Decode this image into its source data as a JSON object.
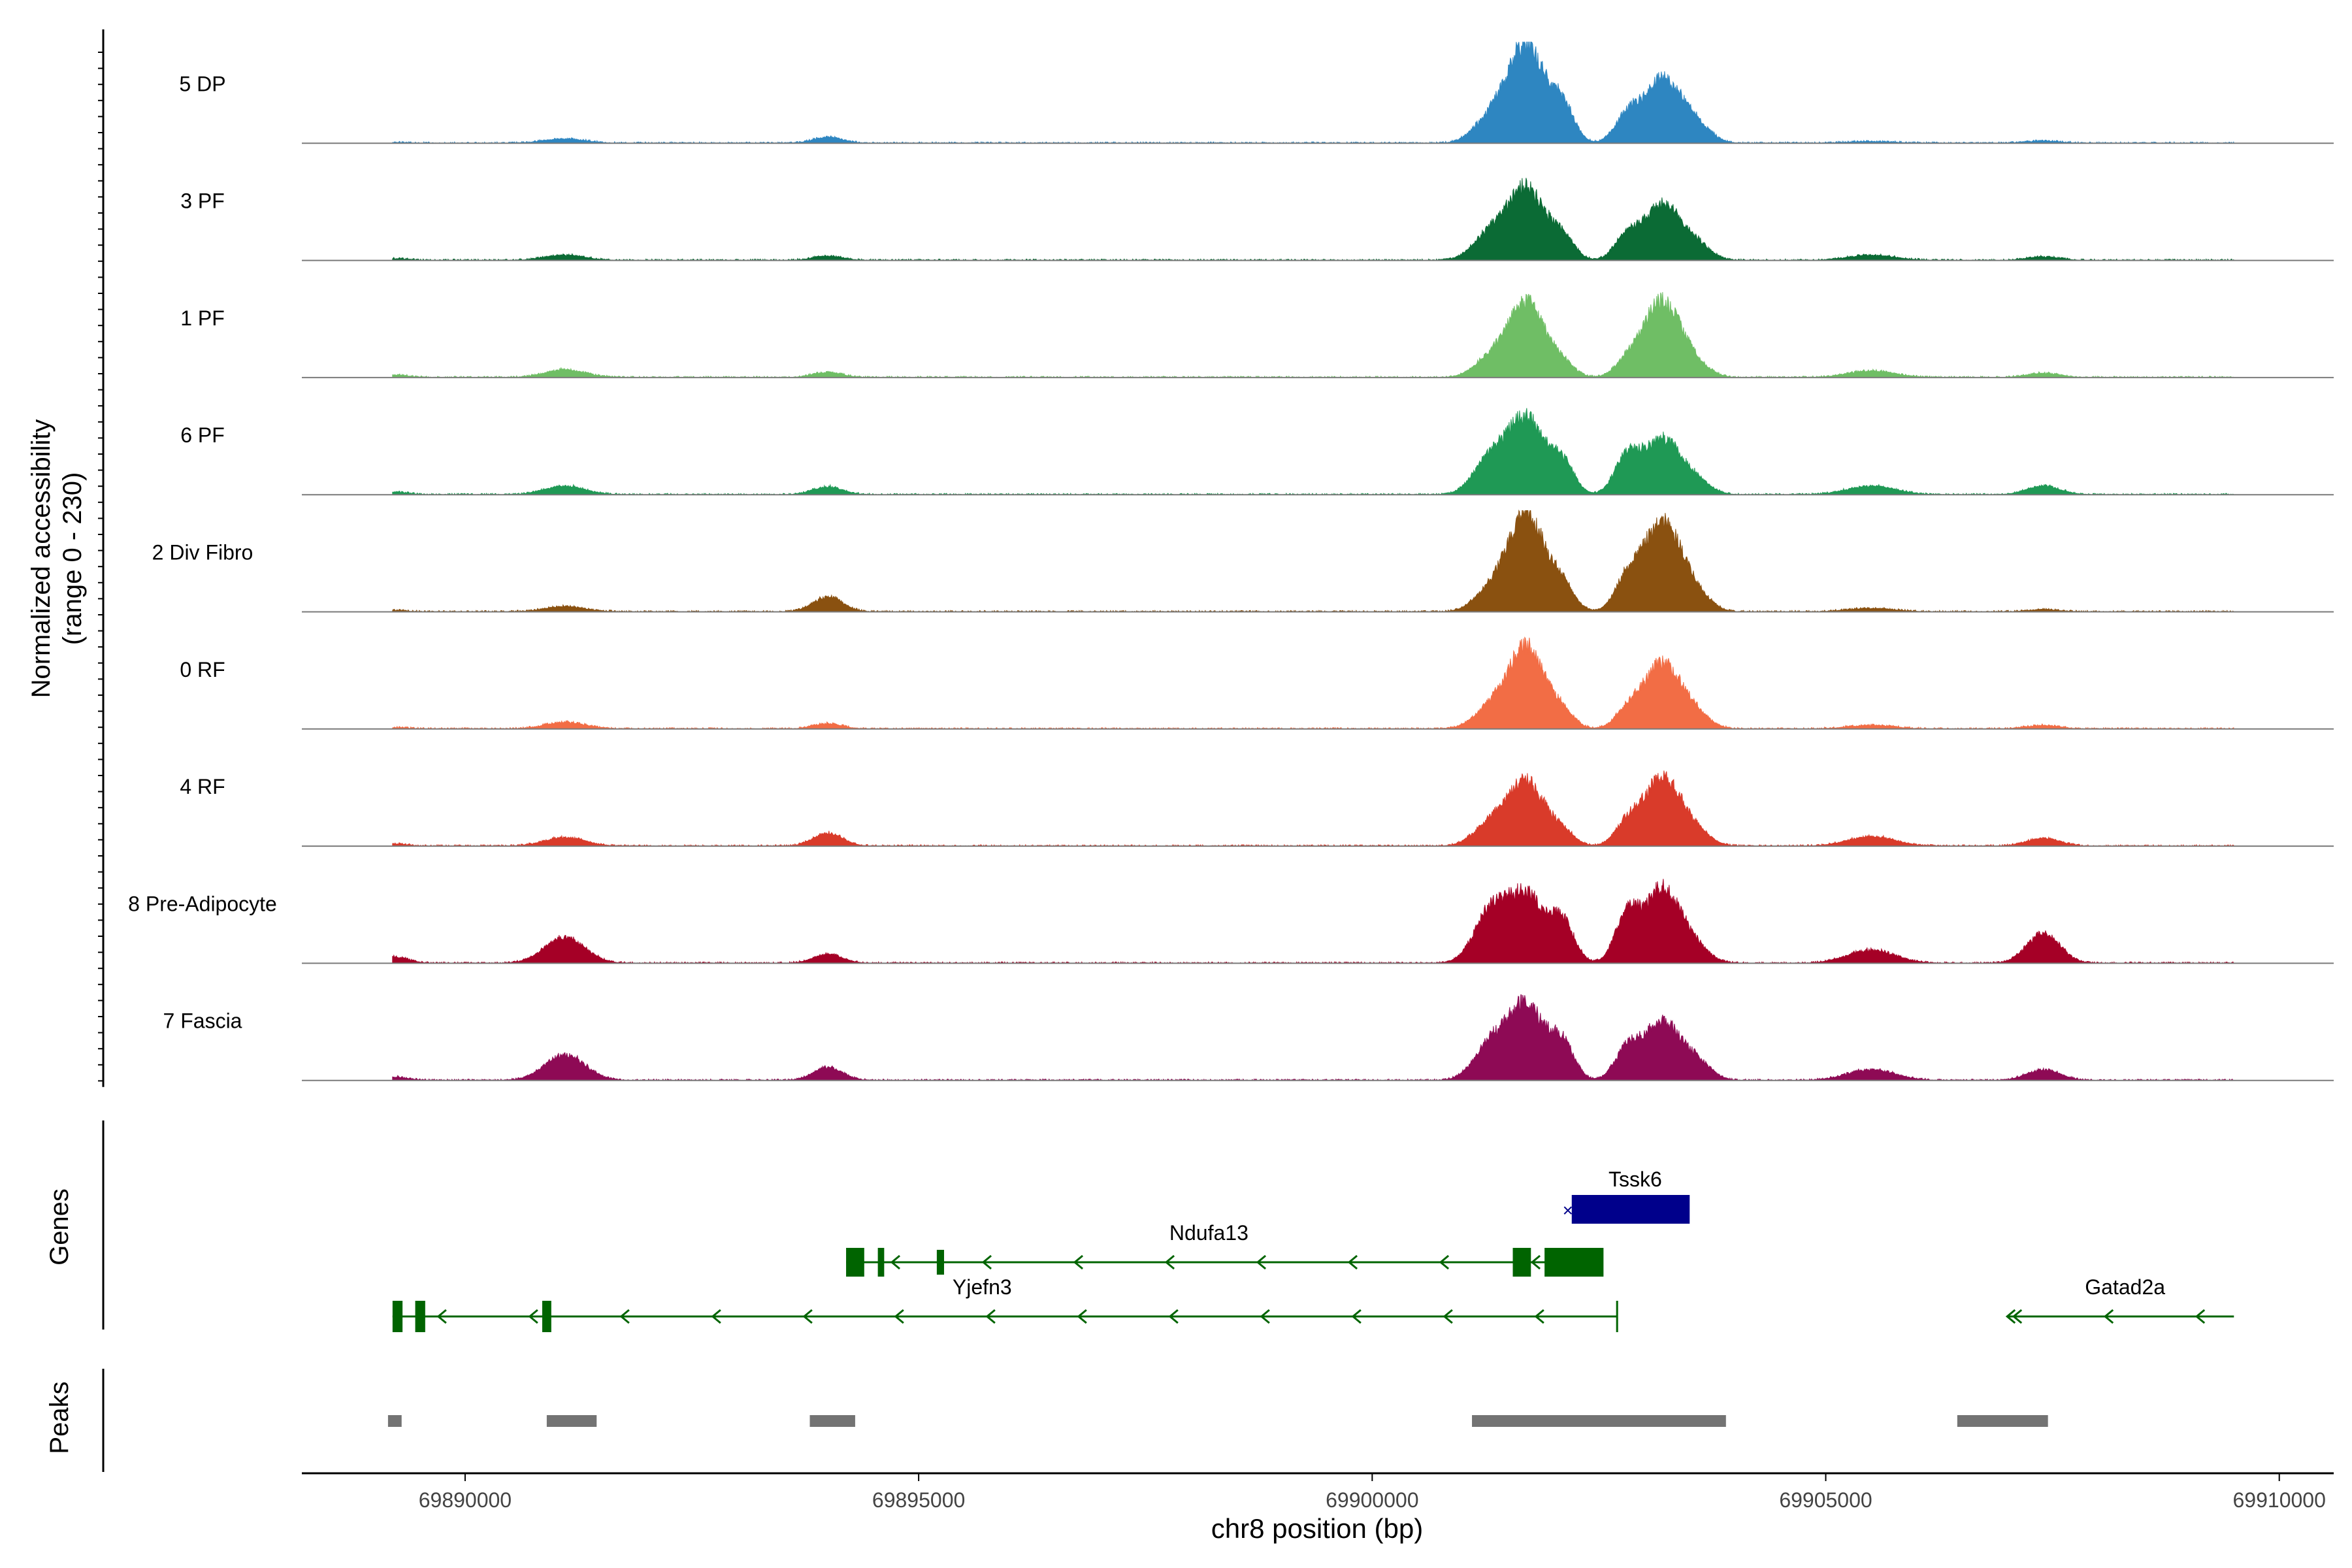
{
  "chart_data": {
    "type": "area",
    "title": "",
    "xlabel": "chr8 position (bp)",
    "ylabel_line1": "Normalized accessibility",
    "ylabel_line2": "(range 0 - 230)",
    "genes_label": "Genes",
    "peaks_label": "Peaks",
    "xlim": [
      69888200,
      69910600
    ],
    "xticks": [
      69890000,
      69895000,
      69900000,
      69905000,
      69910000
    ],
    "xtick_labels": [
      "69890000",
      "69895000",
      "69900000",
      "69905000",
      "69910000"
    ],
    "ylim": [
      0,
      230
    ],
    "x_anchor_points": [
      69889200,
      69891100,
      69894000,
      69901300,
      69901700,
      69902100,
      69902800,
      69903200,
      69903600,
      69905500,
      69907400,
      69909500
    ],
    "tracks": [
      {
        "name": "5 DP",
        "color": "#2e86c1",
        "peak_values": [
          2,
          10,
          14,
          55,
          230,
          80,
          50,
          150,
          30,
          4,
          5,
          0
        ]
      },
      {
        "name": "3 PF",
        "color": "#0b6b35",
        "peak_values": [
          4,
          12,
          10,
          60,
          170,
          50,
          45,
          130,
          25,
          12,
          8,
          0
        ]
      },
      {
        "name": "1 PF",
        "color": "#6fbe65",
        "peak_values": [
          6,
          18,
          12,
          40,
          175,
          30,
          25,
          180,
          15,
          15,
          10,
          0
        ]
      },
      {
        "name": "6 PF",
        "color": "#1f9955",
        "peak_values": [
          6,
          20,
          18,
          80,
          175,
          70,
          80,
          130,
          20,
          20,
          20,
          0
        ]
      },
      {
        "name": "2 Div Fibro",
        "color": "#8a5110",
        "peak_values": [
          3,
          12,
          35,
          45,
          230,
          55,
          60,
          210,
          25,
          8,
          5,
          0
        ]
      },
      {
        "name": "0 RF",
        "color": "#f26d45",
        "peak_values": [
          3,
          15,
          12,
          45,
          190,
          35,
          30,
          155,
          20,
          8,
          8,
          0
        ]
      },
      {
        "name": "4 RF",
        "color": "#d93b2a",
        "peak_values": [
          5,
          20,
          30,
          50,
          150,
          30,
          40,
          160,
          20,
          22,
          18,
          0
        ]
      },
      {
        "name": "8 Pre-Adipocyte",
        "color": "#a50026",
        "peak_values": [
          15,
          60,
          20,
          115,
          160,
          90,
          90,
          175,
          20,
          30,
          70,
          0
        ]
      },
      {
        "name": "7 Fascia",
        "color": "#8e0a55",
        "peak_values": [
          8,
          60,
          30,
          80,
          175,
          80,
          60,
          135,
          30,
          25,
          25,
          0
        ]
      }
    ],
    "genes": [
      {
        "name": "Tssk6",
        "color": "#00008b",
        "strand": "+",
        "start": 69902200,
        "end": 69903500,
        "label_x": 69902900
      },
      {
        "name": "Ndufa13",
        "color": "#006400",
        "strand": "-",
        "start": 69894200,
        "end": 69902500,
        "label_x": 69898200
      },
      {
        "name": "Yjefn3",
        "color": "#006400",
        "strand": "-",
        "start": 69889200,
        "end": 69902700,
        "label_x": 69895700
      },
      {
        "name": "Gatad2a",
        "color": "#006400",
        "strand": "-",
        "start": 69907000,
        "end": 69909500,
        "label_x": 69908300
      }
    ],
    "peaks": [
      [
        69889150,
        69889300
      ],
      [
        69890900,
        69891450
      ],
      [
        69893800,
        69894300
      ],
      [
        69901100,
        69903900
      ],
      [
        69906450,
        69907450
      ]
    ]
  }
}
